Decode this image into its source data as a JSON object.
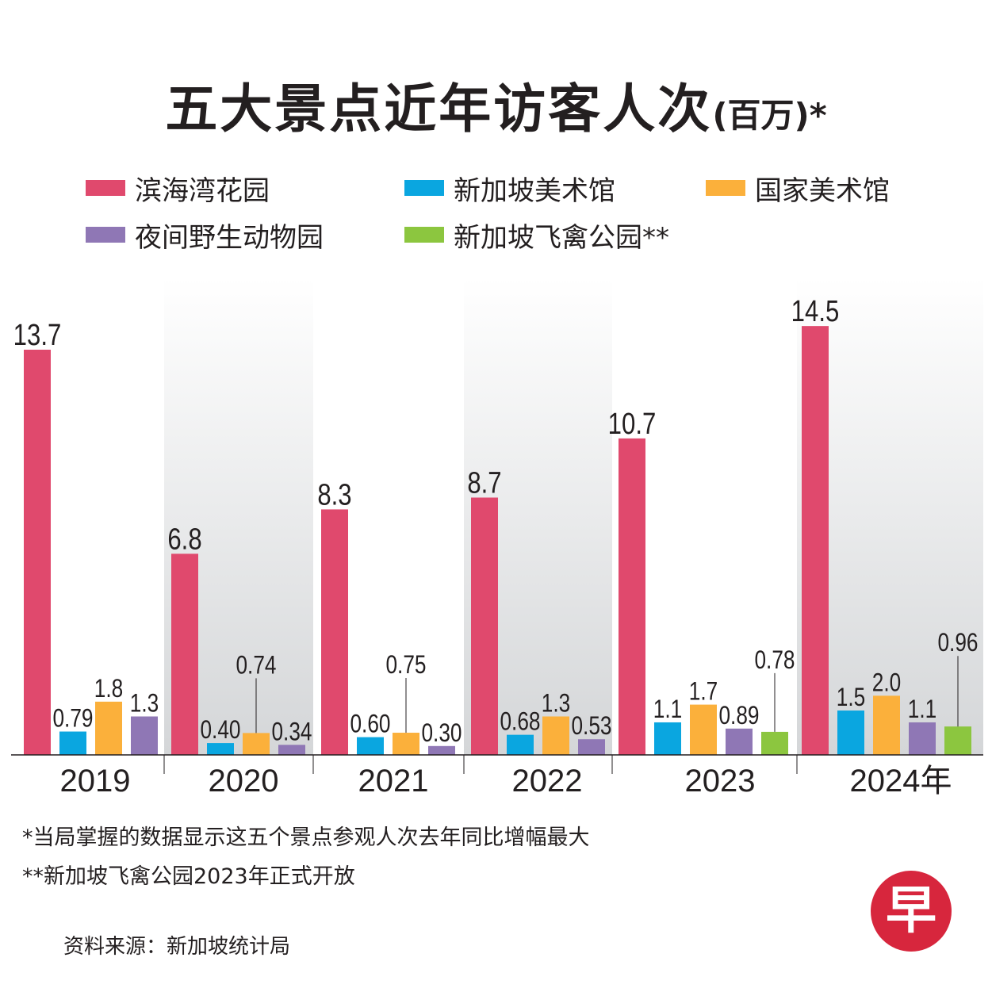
{
  "chart_data": {
    "type": "bar",
    "title": "五大景点近年访客人次",
    "title_unit": "(百万)*",
    "categories": [
      "2019",
      "2020",
      "2021",
      "2022",
      "2023",
      "2024年"
    ],
    "series": [
      {
        "name": "滨海湾花园",
        "color": "#e0496d",
        "values": [
          13.7,
          6.8,
          8.3,
          8.7,
          10.7,
          14.5
        ],
        "labels": [
          "13.7",
          "6.8",
          "8.3",
          "8.7",
          "10.7",
          "14.5"
        ]
      },
      {
        "name": "新加坡美术馆",
        "color": "#0aa6e0",
        "values": [
          0.79,
          0.4,
          0.6,
          0.68,
          1.1,
          1.5
        ],
        "labels": [
          "0.79",
          "0.40",
          "0.60",
          "0.68",
          "1.1",
          "1.5"
        ]
      },
      {
        "name": "国家美术馆",
        "color": "#fbb03b",
        "values": [
          1.8,
          0.74,
          0.75,
          1.3,
          1.7,
          2.0
        ],
        "labels": [
          "1.8",
          "0.74",
          "0.75",
          "1.3",
          "1.7",
          "2.0"
        ]
      },
      {
        "name": "夜间野生动物园",
        "color": "#8f77b5",
        "values": [
          1.3,
          0.34,
          0.3,
          0.53,
          0.89,
          1.1
        ],
        "labels": [
          "1.3",
          "0.34",
          "0.30",
          "0.53",
          "0.89",
          "1.1"
        ]
      },
      {
        "name": "新加坡飞禽公园**",
        "color": "#8cc63f",
        "values": [
          null,
          null,
          null,
          null,
          0.78,
          0.96
        ],
        "labels": [
          null,
          null,
          null,
          null,
          "0.78",
          "0.96"
        ]
      }
    ],
    "ylim": [
      0,
      15
    ],
    "grid": false,
    "legend_position": "top"
  },
  "notes": [
    "*当局掌握的数据显示这五个景点参观人次去年同比增幅最大",
    "**新加坡飞禽公园2023年正式开放"
  ],
  "source": "资料来源：新加坡统计局",
  "logo": {
    "text": "早",
    "color": "#d7263d"
  }
}
